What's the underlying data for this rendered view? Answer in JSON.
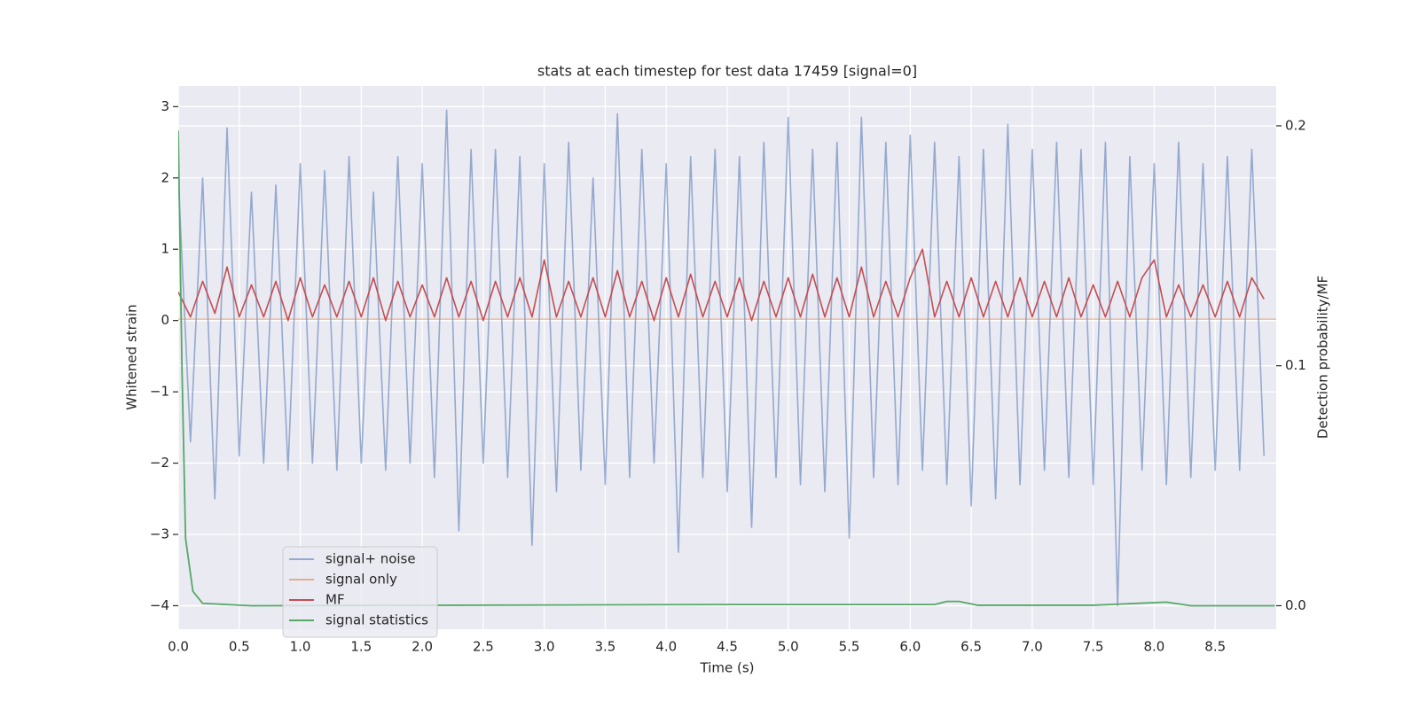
{
  "chart_data": {
    "type": "line",
    "title": "stats at each timestep for test data 17459 [signal=0]",
    "xlabel": "Time (s)",
    "ylabel": "Whitened strain",
    "y2label": "Detection probability/MF",
    "xlim": [
      0,
      9.0
    ],
    "ylim": [
      -4.33,
      3.29
    ],
    "y2lim": [
      -0.0098,
      0.2166
    ],
    "xticks": [
      {
        "value": 0,
        "label": "0.0"
      },
      0.5,
      {
        "value": 1,
        "label": "1.0"
      },
      1.5,
      {
        "value": 2,
        "label": "2.0"
      },
      2.5,
      {
        "value": 3,
        "label": "3.0"
      },
      3.5,
      {
        "value": 4,
        "label": "4.0"
      },
      4.5,
      {
        "value": 5,
        "label": "5.0"
      },
      5.5,
      {
        "value": 6,
        "label": "6.0"
      },
      6.5,
      {
        "value": 7,
        "label": "7.0"
      },
      7.5,
      {
        "value": 8,
        "label": "8.0"
      },
      8.5
    ],
    "yticks": [
      {
        "value": -4,
        "label": "−4"
      },
      {
        "value": -3,
        "label": "−3"
      },
      {
        "value": -2,
        "label": "−2"
      },
      {
        "value": -1,
        "label": "−1"
      },
      0,
      1,
      2,
      3
    ],
    "y2ticks": [
      {
        "value": 0,
        "label": "0.0"
      },
      0.1,
      0.2
    ],
    "grid": true,
    "legend": "lower left",
    "series": [
      {
        "name": "signal+ noise",
        "color": "#4c72b0",
        "x": [
          0.0,
          0.1,
          0.2,
          0.3,
          0.4,
          0.5,
          0.6,
          0.7,
          0.8,
          0.9,
          1.0,
          1.1,
          1.2,
          1.3,
          1.4,
          1.5,
          1.6,
          1.7,
          1.8,
          1.9,
          2.0,
          2.1,
          2.2,
          2.3,
          2.4,
          2.5,
          2.6,
          2.7,
          2.8,
          2.9,
          3.0,
          3.1,
          3.2,
          3.3,
          3.4,
          3.5,
          3.6,
          3.7,
          3.8,
          3.9,
          4.0,
          4.1,
          4.2,
          4.3,
          4.4,
          4.5,
          4.6,
          4.7,
          4.8,
          4.9,
          5.0,
          5.1,
          5.2,
          5.3,
          5.4,
          5.5,
          5.6,
          5.7,
          5.8,
          5.9,
          6.0,
          6.1,
          6.2,
          6.3,
          6.4,
          6.5,
          6.6,
          6.7,
          6.8,
          6.9,
          7.0,
          7.1,
          7.2,
          7.3,
          7.4,
          7.5,
          7.6,
          7.7,
          7.8,
          7.9,
          8.0,
          8.1,
          8.2,
          8.3,
          8.4,
          8.5,
          8.6,
          8.7,
          8.8,
          8.9
        ],
        "values": [
          2.0,
          -1.7,
          2.0,
          -2.5,
          2.7,
          -1.9,
          1.8,
          -2.0,
          1.9,
          -2.1,
          2.2,
          -2.0,
          2.1,
          -2.1,
          2.3,
          -2.0,
          1.8,
          -2.1,
          2.3,
          -2.0,
          2.2,
          -2.2,
          2.95,
          -2.95,
          2.4,
          -2.0,
          2.4,
          -2.2,
          2.3,
          -3.15,
          2.2,
          -2.4,
          2.5,
          -2.1,
          2.0,
          -2.3,
          2.9,
          -2.2,
          2.4,
          -2.0,
          2.2,
          -3.25,
          2.3,
          -2.2,
          2.4,
          -2.4,
          2.3,
          -2.9,
          2.5,
          -2.2,
          2.85,
          -2.3,
          2.4,
          -2.4,
          2.5,
          -3.05,
          2.85,
          -2.2,
          2.5,
          -2.3,
          2.6,
          -2.1,
          2.5,
          -2.3,
          2.3,
          -2.6,
          2.4,
          -2.5,
          2.75,
          -2.3,
          2.4,
          -2.1,
          2.5,
          -2.2,
          2.4,
          -2.3,
          2.5,
          -4.0,
          2.3,
          -2.1,
          2.2,
          -2.3,
          2.5,
          -2.2,
          2.2,
          -2.1,
          2.3,
          -2.1,
          2.4,
          -1.9
        ]
      },
      {
        "name": "signal only",
        "color": "#dd8452",
        "x": [
          0.0,
          9.0
        ],
        "values": [
          0.02,
          0.02
        ]
      },
      {
        "name": "MF",
        "color": "#c44e52",
        "x": [
          0.0,
          0.1,
          0.2,
          0.3,
          0.4,
          0.5,
          0.6,
          0.7,
          0.8,
          0.9,
          1.0,
          1.1,
          1.2,
          1.3,
          1.4,
          1.5,
          1.6,
          1.7,
          1.8,
          1.9,
          2.0,
          2.1,
          2.2,
          2.3,
          2.4,
          2.5,
          2.6,
          2.7,
          2.8,
          2.9,
          3.0,
          3.1,
          3.2,
          3.3,
          3.4,
          3.5,
          3.6,
          3.7,
          3.8,
          3.9,
          4.0,
          4.1,
          4.2,
          4.3,
          4.4,
          4.5,
          4.6,
          4.7,
          4.8,
          4.9,
          5.0,
          5.1,
          5.2,
          5.3,
          5.4,
          5.5,
          5.6,
          5.7,
          5.8,
          5.9,
          6.0,
          6.1,
          6.2,
          6.3,
          6.4,
          6.5,
          6.6,
          6.7,
          6.8,
          6.9,
          7.0,
          7.1,
          7.2,
          7.3,
          7.4,
          7.5,
          7.6,
          7.7,
          7.8,
          7.9,
          8.0,
          8.1,
          8.2,
          8.3,
          8.4,
          8.5,
          8.6,
          8.7,
          8.8,
          8.9
        ],
        "values": [
          0.4,
          0.05,
          0.55,
          0.1,
          0.75,
          0.05,
          0.5,
          0.05,
          0.55,
          0.0,
          0.6,
          0.05,
          0.5,
          0.05,
          0.55,
          0.05,
          0.6,
          0.0,
          0.55,
          0.05,
          0.5,
          0.05,
          0.6,
          0.05,
          0.55,
          0.0,
          0.55,
          0.05,
          0.6,
          0.05,
          0.85,
          0.05,
          0.55,
          0.05,
          0.6,
          0.05,
          0.7,
          0.05,
          0.55,
          0.0,
          0.6,
          0.05,
          0.65,
          0.05,
          0.55,
          0.05,
          0.6,
          0.0,
          0.55,
          0.05,
          0.6,
          0.05,
          0.65,
          0.05,
          0.6,
          0.05,
          0.75,
          0.05,
          0.55,
          0.05,
          0.6,
          1.0,
          0.05,
          0.55,
          0.05,
          0.6,
          0.05,
          0.55,
          0.05,
          0.6,
          0.05,
          0.55,
          0.05,
          0.6,
          0.05,
          0.5,
          0.05,
          0.55,
          0.05,
          0.6,
          0.85,
          0.05,
          0.5,
          0.05,
          0.5,
          0.05,
          0.55,
          0.05,
          0.6,
          0.3
        ]
      },
      {
        "name": "signal statistics",
        "color": "#55a868",
        "axis": "y2",
        "x": [
          0.0,
          0.03,
          0.06,
          0.12,
          0.2,
          0.4,
          0.6,
          4.6,
          6.2,
          6.3,
          6.4,
          6.55,
          7.5,
          8.1,
          8.3,
          8.99
        ],
        "values": [
          0.198,
          0.1,
          0.028,
          0.006,
          0.001,
          0.0005,
          0.0,
          0.0005,
          0.0005,
          0.0018,
          0.0018,
          0.0002,
          0.0002,
          0.0015,
          0.0,
          0.0
        ]
      }
    ]
  }
}
